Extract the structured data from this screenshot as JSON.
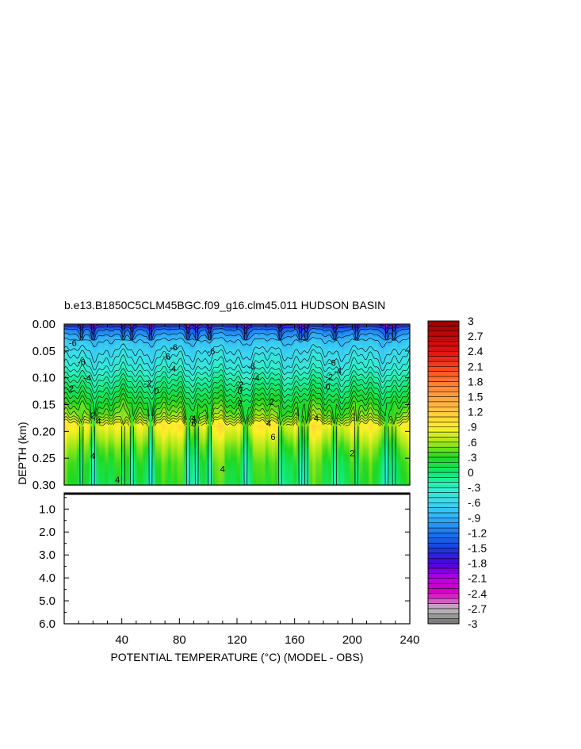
{
  "chart_data": {
    "type": "heatmap",
    "title": "b.e13.B1850C5CLM45BGC.f09_g16.clm45.011 HUDSON BASIN",
    "xlabel": "POTENTIAL TEMPERATURE (°C) (MODEL - OBS)",
    "ylabel": "DEPTH (km)",
    "xlim": [
      0,
      240
    ],
    "x_ticks": [
      "40",
      "80",
      "120",
      "160",
      "200",
      "240"
    ],
    "upper_panel": {
      "ylim": [
        0.0,
        0.3
      ],
      "y_ticks": [
        "0.00",
        "0.05",
        "0.10",
        "0.15",
        "0.20",
        "0.25",
        "0.30"
      ]
    },
    "lower_panel": {
      "ylim": [
        0.3,
        6.0
      ],
      "y_ticks": [
        "1.0",
        "2.0",
        "3.0",
        "4.0",
        "5.0",
        "6.0"
      ]
    },
    "depth_profile": {
      "depth_km": [
        0.0,
        0.01,
        0.03,
        0.05,
        0.08,
        0.11,
        0.14,
        0.17,
        0.19,
        0.2,
        0.23,
        0.26,
        0.3
      ],
      "value": [
        -1.8,
        -1.2,
        -0.8,
        -0.6,
        -0.4,
        -0.1,
        0.2,
        0.5,
        0.9,
        0.8,
        0.5,
        0.3,
        0.2
      ]
    },
    "contour_labels": [
      {
        "text": "-6",
        "x": 6,
        "depth": 0.035
      },
      {
        "text": "-6",
        "x": 12,
        "depth": 0.07
      },
      {
        "text": "-4",
        "x": 16,
        "depth": 0.1
      },
      {
        "text": "-2",
        "x": 4,
        "depth": 0.12
      },
      {
        "text": "-6",
        "x": 71,
        "depth": 0.06
      },
      {
        "text": "-6",
        "x": 76,
        "depth": 0.043
      },
      {
        "text": "-4",
        "x": 75,
        "depth": 0.083
      },
      {
        "text": "-2",
        "x": 58,
        "depth": 0.11
      },
      {
        "text": "0",
        "x": 64,
        "depth": 0.124
      },
      {
        "text": "-6",
        "x": 102,
        "depth": 0.05
      },
      {
        "text": "-6",
        "x": 130,
        "depth": 0.078
      },
      {
        "text": "-4",
        "x": 133,
        "depth": 0.1
      },
      {
        "text": "-2",
        "x": 122,
        "depth": 0.112
      },
      {
        "text": "0",
        "x": 122,
        "depth": 0.124
      },
      {
        "text": "-6",
        "x": 186,
        "depth": 0.072
      },
      {
        "text": "-4",
        "x": 190,
        "depth": 0.087
      },
      {
        "text": "-2",
        "x": 184,
        "depth": 0.098
      },
      {
        "text": "0",
        "x": 183,
        "depth": 0.116
      },
      {
        "text": "2",
        "x": 122,
        "depth": 0.147
      },
      {
        "text": "2",
        "x": 144,
        "depth": 0.145
      },
      {
        "text": "2",
        "x": 20,
        "depth": 0.17
      },
      {
        "text": "4",
        "x": 24,
        "depth": 0.18
      },
      {
        "text": "4",
        "x": 90,
        "depth": 0.175
      },
      {
        "text": "4",
        "x": 142,
        "depth": 0.185
      },
      {
        "text": "4",
        "x": 175,
        "depth": 0.175
      },
      {
        "text": "6",
        "x": 90,
        "depth": 0.185
      },
      {
        "text": "6",
        "x": 145,
        "depth": 0.21
      },
      {
        "text": "4",
        "x": 20,
        "depth": 0.245
      },
      {
        "text": "4",
        "x": 110,
        "depth": 0.27
      },
      {
        "text": "2",
        "x": 200,
        "depth": 0.24
      },
      {
        "text": "4",
        "x": 37,
        "depth": 0.29
      }
    ],
    "colorbar": {
      "labels": [
        "3",
        "2.7",
        "2.4",
        "2.1",
        "1.8",
        "1.5",
        "1.2",
        ".9",
        ".6",
        ".3",
        "0",
        "-.3",
        "-.6",
        "-.9",
        "-1.2",
        "-1.5",
        "-1.8",
        "-2.1",
        "-2.4",
        "-2.7",
        "-3"
      ],
      "values": [
        3,
        2.7,
        2.4,
        2.1,
        1.8,
        1.5,
        1.2,
        0.9,
        0.6,
        0.3,
        0,
        -0.3,
        -0.6,
        -0.9,
        -1.2,
        -1.5,
        -1.8,
        -2.1,
        -2.4,
        -2.7,
        -3
      ],
      "stops": [
        {
          "value": -3.0,
          "color": "#6e6e6e"
        },
        {
          "value": -2.7,
          "color": "#c0c0c0"
        },
        {
          "value": -2.4,
          "color": "#e000c8"
        },
        {
          "value": -2.1,
          "color": "#b800e0"
        },
        {
          "value": -1.8,
          "color": "#4a00e0"
        },
        {
          "value": -1.5,
          "color": "#1840e0"
        },
        {
          "value": -1.2,
          "color": "#1c78f0"
        },
        {
          "value": -0.9,
          "color": "#30b0f8"
        },
        {
          "value": -0.6,
          "color": "#3cd8f0"
        },
        {
          "value": -0.3,
          "color": "#30f0c8"
        },
        {
          "value": 0.0,
          "color": "#10e870"
        },
        {
          "value": 0.3,
          "color": "#20d820"
        },
        {
          "value": 0.6,
          "color": "#a8e818"
        },
        {
          "value": 0.9,
          "color": "#fff028"
        },
        {
          "value": 1.2,
          "color": "#ffc840"
        },
        {
          "value": 1.5,
          "color": "#ffa040"
        },
        {
          "value": 1.8,
          "color": "#ff7830"
        },
        {
          "value": 2.1,
          "color": "#f84018"
        },
        {
          "value": 2.4,
          "color": "#e01010"
        },
        {
          "value": 2.7,
          "color": "#c00808"
        },
        {
          "value": 3.0,
          "color": "#a00000"
        }
      ]
    }
  }
}
